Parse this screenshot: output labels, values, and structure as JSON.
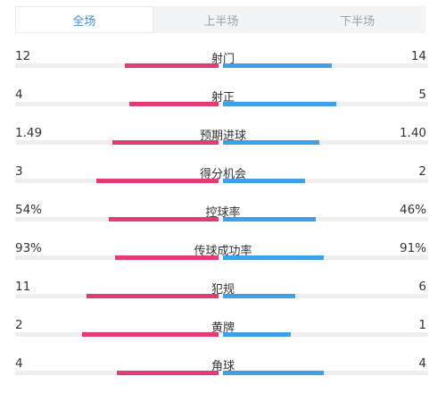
{
  "tabs": [
    {
      "label": "全场",
      "active": true
    },
    {
      "label": "上半场",
      "active": false
    },
    {
      "label": "下半场",
      "active": false
    }
  ],
  "colors": {
    "home_bar": "#e63a73",
    "away_bar": "#3fa0ea",
    "active_tab": "#3b8fd9"
  },
  "stats": [
    {
      "label": "射门",
      "home": "12",
      "away": "14",
      "home_fill": 0.46,
      "away_fill": 0.53
    },
    {
      "label": "射正",
      "home": "4",
      "away": "5",
      "home_fill": 0.44,
      "away_fill": 0.55
    },
    {
      "label": "预期进球",
      "home": "1.49",
      "away": "1.40",
      "home_fill": 0.52,
      "away_fill": 0.47
    },
    {
      "label": "得分机会",
      "home": "3",
      "away": "2",
      "home_fill": 0.6,
      "away_fill": 0.4
    },
    {
      "label": "控球率",
      "home": "54%",
      "away": "46%",
      "home_fill": 0.54,
      "away_fill": 0.45
    },
    {
      "label": "传球成功率",
      "home": "93%",
      "away": "91%",
      "home_fill": 0.51,
      "away_fill": 0.49
    },
    {
      "label": "犯规",
      "home": "11",
      "away": "6",
      "home_fill": 0.65,
      "away_fill": 0.35
    },
    {
      "label": "黄牌",
      "home": "2",
      "away": "1",
      "home_fill": 0.67,
      "away_fill": 0.33
    },
    {
      "label": "角球",
      "home": "4",
      "away": "4",
      "home_fill": 0.5,
      "away_fill": 0.49
    }
  ]
}
